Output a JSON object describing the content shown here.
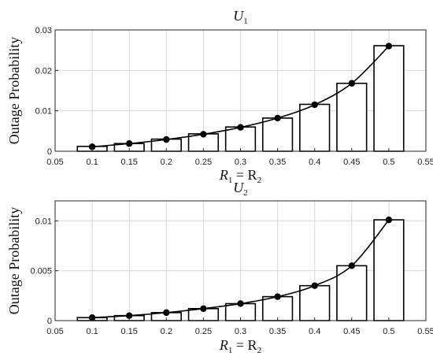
{
  "chart_data": [
    {
      "type": "bar",
      "title": "U",
      "title_sub": "1",
      "xlabel": "R",
      "xlabel_sub1": "1",
      "xlabel_eq": " = R",
      "xlabel_sub2": "2",
      "ylabel": "Outage Probability",
      "xlim": [
        0.05,
        0.55
      ],
      "ylim": [
        0,
        0.03
      ],
      "grid": true,
      "x": [
        0.1,
        0.15,
        0.2,
        0.25,
        0.3,
        0.35,
        0.4,
        0.45,
        0.5
      ],
      "bar_width": 0.04,
      "x_ticks": [
        "0.05",
        "0.1",
        "0.15",
        "0.2",
        "0.25",
        "0.3",
        "0.35",
        "0.4",
        "0.45",
        "0.5",
        "0.55"
      ],
      "y_ticks": [
        "0",
        "0.01",
        "0.02",
        "0.03"
      ],
      "series": [
        {
          "kind": "bar",
          "values": [
            0.0012,
            0.0019,
            0.003,
            0.0043,
            0.006,
            0.0082,
            0.0116,
            0.0168,
            0.0261
          ]
        },
        {
          "kind": "line-marker",
          "values": [
            0.0011,
            0.0019,
            0.0029,
            0.0042,
            0.0059,
            0.0082,
            0.0115,
            0.0168,
            0.026
          ]
        }
      ]
    },
    {
      "type": "bar",
      "title": "U",
      "title_sub": "2",
      "xlabel": "R",
      "xlabel_sub1": "1",
      "xlabel_eq": " = R",
      "xlabel_sub2": "2",
      "ylabel": "Outage Probability",
      "xlim": [
        0.05,
        0.55
      ],
      "ylim": [
        0,
        0.012
      ],
      "grid": true,
      "x": [
        0.1,
        0.15,
        0.2,
        0.25,
        0.3,
        0.35,
        0.4,
        0.45,
        0.5
      ],
      "bar_width": 0.04,
      "x_ticks": [
        "0.05",
        "0.1",
        "0.15",
        "0.2",
        "0.25",
        "0.3",
        "0.35",
        "0.4",
        "0.45",
        "0.5",
        "0.55"
      ],
      "y_ticks": [
        "0",
        "0.005",
        "0.01"
      ],
      "series": [
        {
          "kind": "bar",
          "values": [
            0.0003,
            0.0005,
            0.0008,
            0.0012,
            0.0017,
            0.0024,
            0.0035,
            0.0055,
            0.0101
          ]
        },
        {
          "kind": "line-marker",
          "values": [
            0.0003,
            0.0005,
            0.0008,
            0.0012,
            0.0017,
            0.0024,
            0.0035,
            0.0055,
            0.0101
          ]
        }
      ]
    }
  ]
}
